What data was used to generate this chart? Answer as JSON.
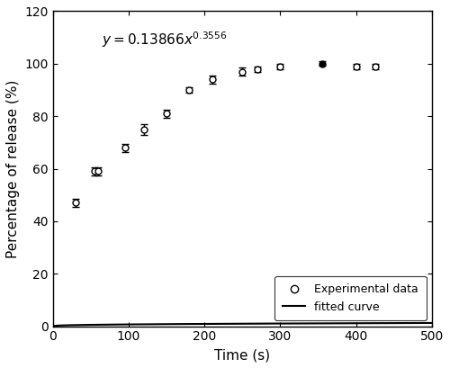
{
  "exp_x": [
    30,
    55,
    60,
    95,
    120,
    150,
    180,
    210,
    250,
    270,
    300,
    355,
    400,
    425
  ],
  "exp_y": [
    47,
    59,
    59,
    68,
    75,
    81,
    90,
    94,
    97,
    98,
    99,
    100,
    99,
    99
  ],
  "exp_yerr": [
    1.5,
    1.5,
    1.5,
    1.5,
    2.0,
    1.5,
    1.0,
    1.5,
    1.5,
    1.0,
    1.0,
    0.8,
    1.0,
    1.0
  ],
  "filled_idx": 11,
  "fit_coef": 0.13866,
  "fit_exp": 0.3556,
  "equation_x": 65,
  "equation_y": 107,
  "xlabel": "Time (s)",
  "ylabel": "Percentage of release (%)",
  "xlim": [
    0,
    500
  ],
  "ylim": [
    0,
    120
  ],
  "xticks": [
    0,
    100,
    200,
    300,
    400,
    500
  ],
  "yticks": [
    0,
    20,
    40,
    60,
    80,
    100,
    120
  ],
  "legend_exp": "Experimental data",
  "legend_fit": "fitted curve",
  "line_color": "black",
  "bg_color": "white"
}
